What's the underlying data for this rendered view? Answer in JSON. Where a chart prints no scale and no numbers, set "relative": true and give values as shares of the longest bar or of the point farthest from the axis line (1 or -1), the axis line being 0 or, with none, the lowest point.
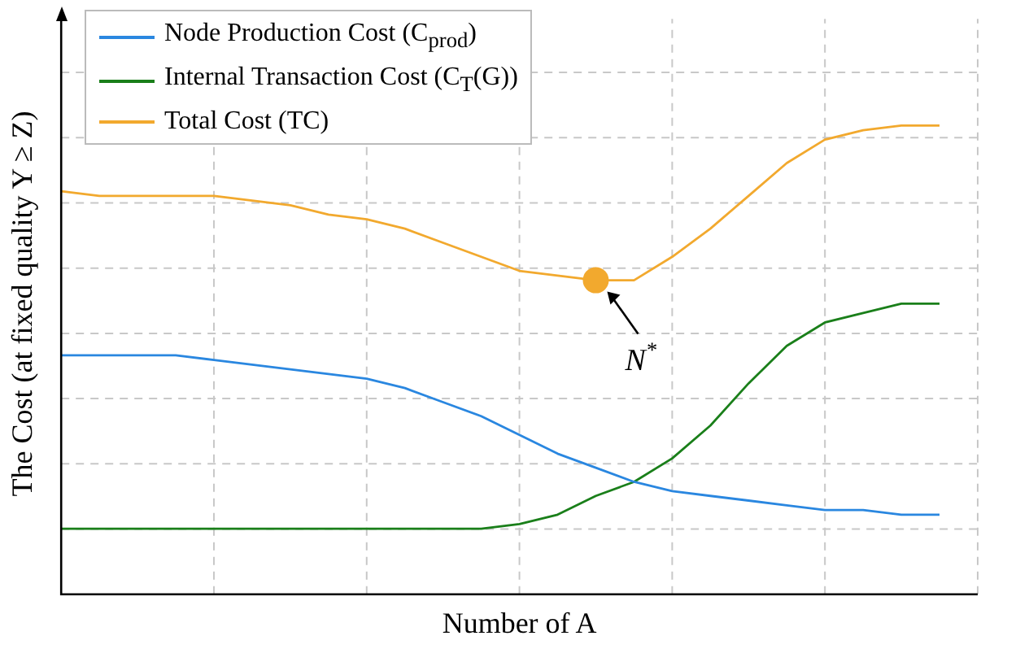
{
  "chart_data": {
    "type": "line",
    "relative": true,
    "xlabel": "Number of A",
    "ylabel": "The Cost (at fixed quality Y ≥ Z)",
    "categories": [
      null,
      null,
      null,
      null,
      null,
      null,
      null,
      null,
      null,
      null,
      null,
      null,
      null,
      null,
      null,
      null,
      null,
      null,
      null,
      null,
      null,
      null,
      null,
      null
    ],
    "series": [
      {
        "name": "Node Production Cost (C$_{prod}$)",
        "color": "#2a87e0",
        "values": [
          0.51,
          0.51,
          0.51,
          0.51,
          0.5,
          0.49,
          0.48,
          0.47,
          0.46,
          0.44,
          0.41,
          0.38,
          0.34,
          0.3,
          0.27,
          0.24,
          0.22,
          0.21,
          0.2,
          0.19,
          0.18,
          0.18,
          0.17,
          0.17
        ]
      },
      {
        "name": "Internal Transaction Cost (C$_{T}$(G))",
        "color": "#1a7f1a",
        "values": [
          0.14,
          0.14,
          0.14,
          0.14,
          0.14,
          0.14,
          0.14,
          0.14,
          0.14,
          0.14,
          0.14,
          0.14,
          0.15,
          0.17,
          0.21,
          0.24,
          0.29,
          0.36,
          0.45,
          0.53,
          0.58,
          0.6,
          0.62,
          0.62
        ]
      },
      {
        "name": "Total Cost (TC)",
        "color": "#f2a92e",
        "values": [
          0.86,
          0.85,
          0.85,
          0.85,
          0.85,
          0.84,
          0.83,
          0.81,
          0.8,
          0.78,
          0.75,
          0.72,
          0.69,
          0.68,
          0.67,
          0.67,
          0.72,
          0.78,
          0.85,
          0.92,
          0.97,
          0.99,
          1.0,
          1.0
        ]
      }
    ],
    "annotations": [
      {
        "text": "N$^{*}$",
        "y": 0.67
      }
    ],
    "grid": true,
    "legend": "top left",
    "line_style": "solid",
    "marker": "none"
  }
}
